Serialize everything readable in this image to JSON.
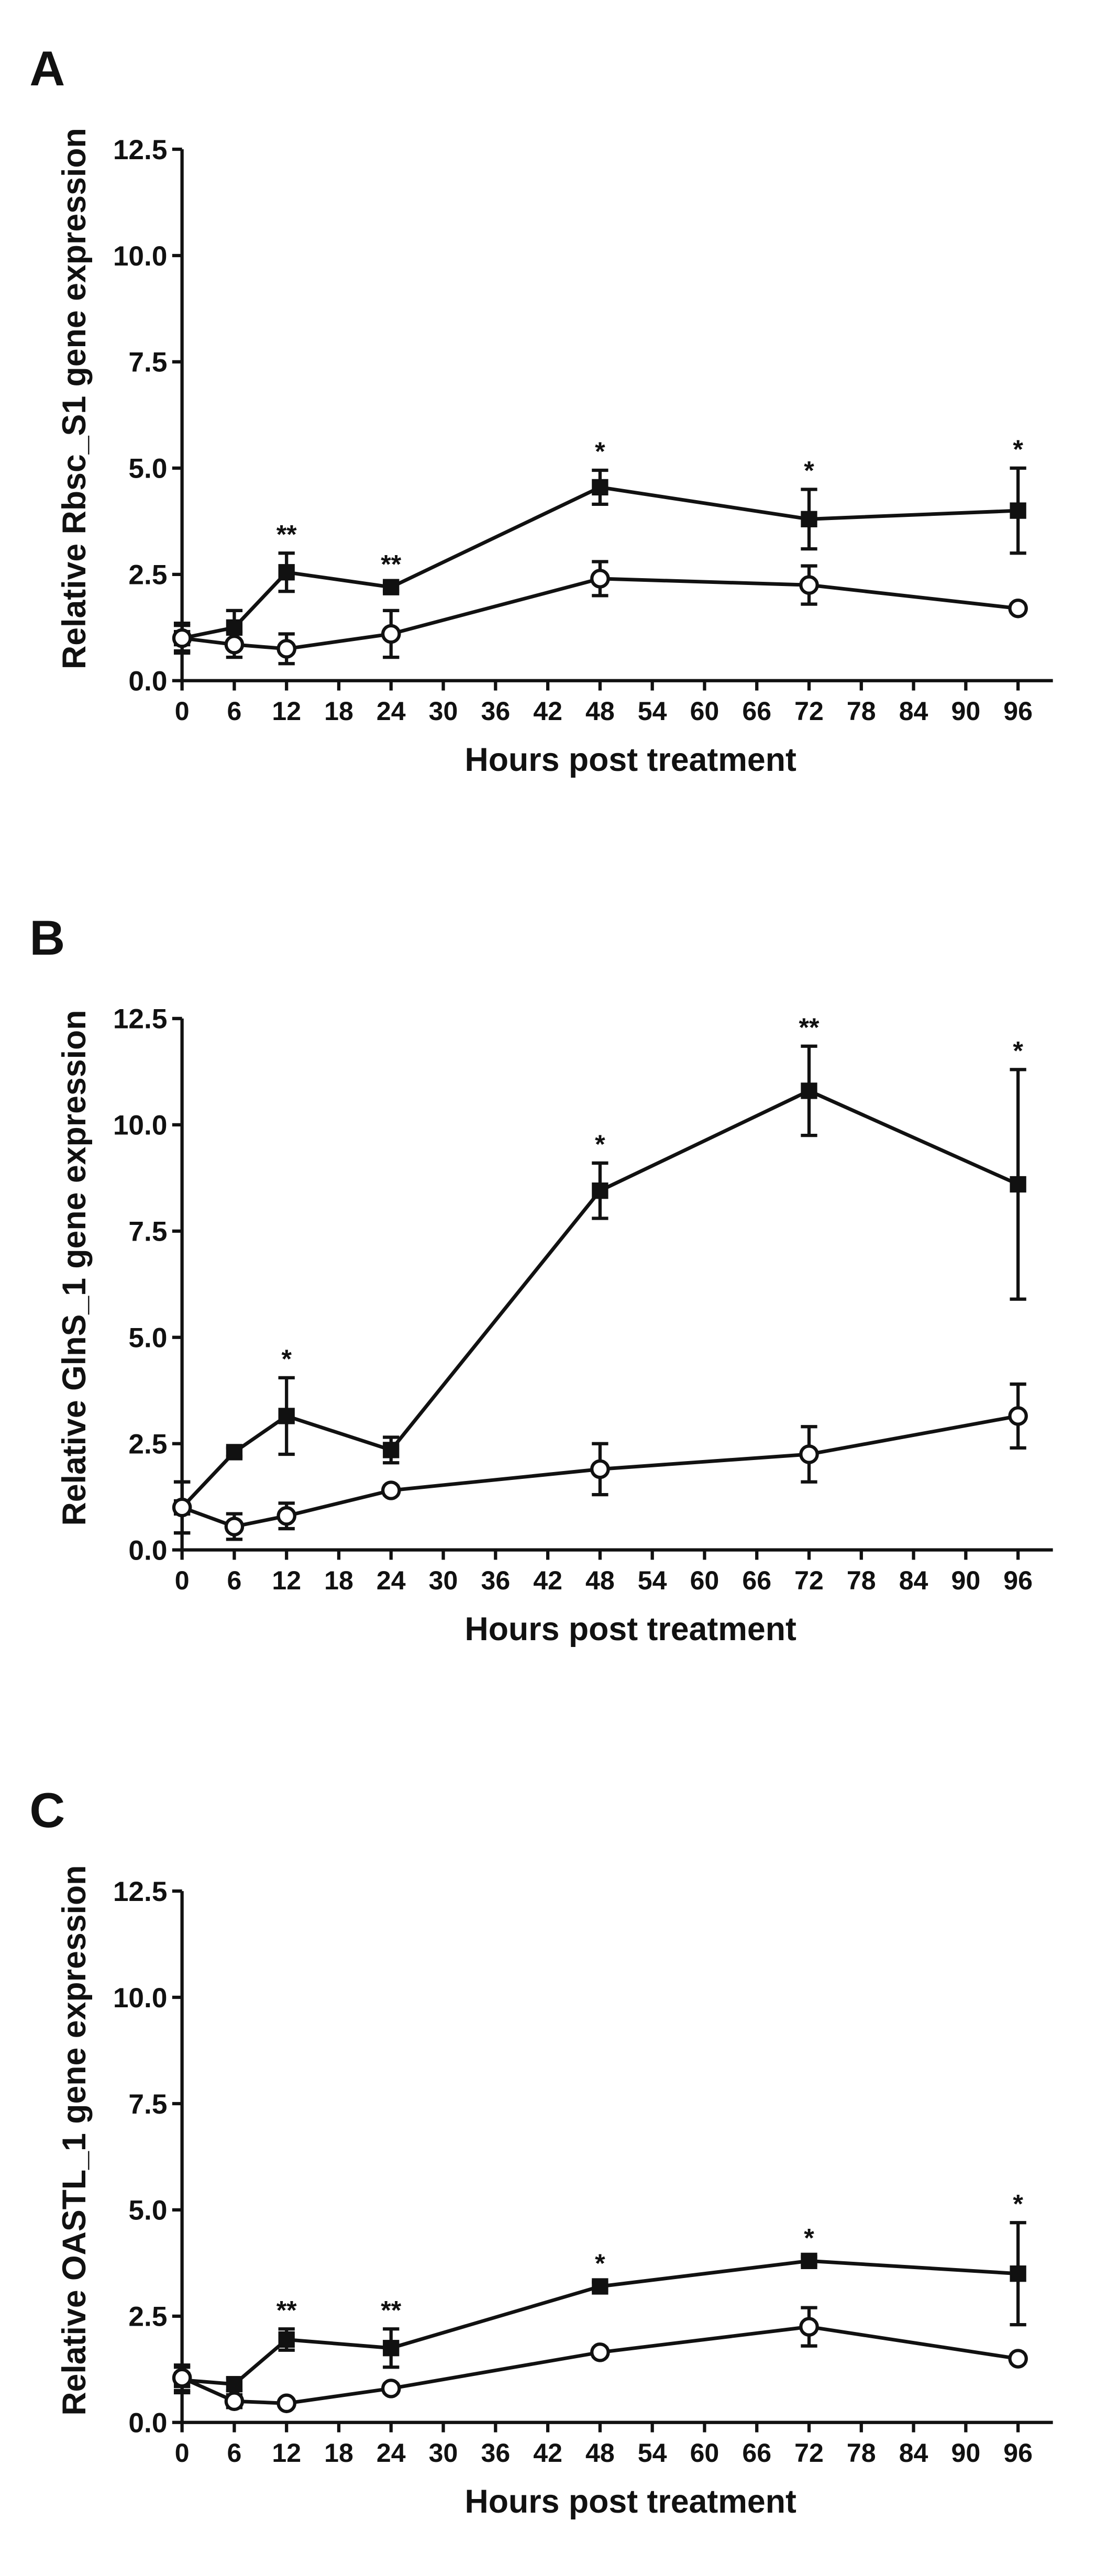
{
  "chart_data": [
    {
      "type": "line",
      "panel": "A",
      "ylabel": "Relative Rbsc_S1 gene expression",
      "xlabel": "Hours post treatment",
      "x": [
        0,
        6,
        12,
        24,
        48,
        72,
        96
      ],
      "xlim": [
        0,
        100
      ],
      "xticks": [
        0,
        6,
        12,
        18,
        24,
        30,
        36,
        42,
        48,
        54,
        60,
        66,
        72,
        78,
        84,
        90,
        96
      ],
      "ylim": [
        0,
        12.5
      ],
      "yticks": [
        {
          "value": 0,
          "label": "0.0"
        },
        2.5,
        {
          "value": 5,
          "label": "5.0"
        },
        7.5,
        {
          "value": 10,
          "label": "10.0"
        },
        12.5
      ],
      "series": [
        {
          "marker": "square",
          "color": "#111111",
          "values": [
            1.0,
            1.25,
            2.55,
            2.2,
            4.55,
            3.8,
            4.0
          ],
          "errors": [
            0.35,
            0.4,
            0.45,
            0.1,
            0.4,
            0.7,
            1.0
          ]
        },
        {
          "marker": "circle",
          "color": "#111111",
          "values": [
            1.0,
            0.85,
            0.75,
            1.1,
            2.4,
            2.25,
            1.7
          ],
          "errors": [
            0.3,
            0.3,
            0.35,
            0.55,
            0.4,
            0.45,
            0.1
          ]
        }
      ],
      "annotations": [
        {
          "x": 12,
          "text": "**"
        },
        {
          "x": 24,
          "text": "**"
        },
        {
          "x": 48,
          "text": "*"
        },
        {
          "x": 72,
          "text": "*"
        },
        {
          "x": 96,
          "text": "*"
        }
      ]
    },
    {
      "type": "line",
      "panel": "B",
      "ylabel": "Relative GlnS_1 gene expression",
      "xlabel": "Hours post treatment",
      "x": [
        0,
        6,
        12,
        24,
        48,
        72,
        96
      ],
      "xlim": [
        0,
        100
      ],
      "xticks": [
        0,
        6,
        12,
        18,
        24,
        30,
        36,
        42,
        48,
        54,
        60,
        66,
        72,
        78,
        84,
        90,
        96
      ],
      "ylim": [
        0,
        12.5
      ],
      "yticks": [
        {
          "value": 0,
          "label": "0.0"
        },
        2.5,
        {
          "value": 5,
          "label": "5.0"
        },
        7.5,
        {
          "value": 10,
          "label": "10.0"
        },
        12.5
      ],
      "series": [
        {
          "marker": "square",
          "color": "#111111",
          "values": [
            1.0,
            2.3,
            3.15,
            2.35,
            8.45,
            10.8,
            8.6
          ],
          "errors": [
            0.6,
            0.1,
            0.9,
            0.3,
            0.65,
            1.05,
            2.7
          ]
        },
        {
          "marker": "circle",
          "color": "#111111",
          "values": [
            1.0,
            0.55,
            0.8,
            1.4,
            1.9,
            2.25,
            3.15
          ],
          "errors": [
            0.6,
            0.3,
            0.3,
            0.1,
            0.6,
            0.65,
            0.75
          ]
        }
      ],
      "annotations": [
        {
          "x": 12,
          "text": "*"
        },
        {
          "x": 48,
          "text": "*"
        },
        {
          "x": 72,
          "text": "**"
        },
        {
          "x": 96,
          "text": "*"
        }
      ]
    },
    {
      "type": "line",
      "panel": "C",
      "ylabel": "Relative OASTL_1 gene expression",
      "xlabel": "Hours post treatment",
      "x": [
        0,
        6,
        12,
        24,
        48,
        72,
        96
      ],
      "xlim": [
        0,
        100
      ],
      "xticks": [
        0,
        6,
        12,
        18,
        24,
        30,
        36,
        42,
        48,
        54,
        60,
        66,
        72,
        78,
        84,
        90,
        96
      ],
      "ylim": [
        0,
        12.5
      ],
      "yticks": [
        {
          "value": 0,
          "label": "0.0"
        },
        2.5,
        {
          "value": 5,
          "label": "5.0"
        },
        7.5,
        {
          "value": 10,
          "label": "10.0"
        },
        12.5
      ],
      "series": [
        {
          "marker": "square",
          "color": "#111111",
          "values": [
            1.0,
            0.9,
            1.95,
            1.75,
            3.2,
            3.8,
            3.5
          ],
          "errors": [
            0.3,
            0.15,
            0.25,
            0.45,
            0.1,
            0.1,
            1.2
          ]
        },
        {
          "marker": "circle",
          "color": "#111111",
          "values": [
            1.05,
            0.5,
            0.45,
            0.8,
            1.65,
            2.25,
            1.5
          ],
          "errors": [
            0.3,
            0.15,
            0.05,
            0.1,
            0.1,
            0.45,
            0.1
          ]
        }
      ],
      "annotations": [
        {
          "x": 12,
          "text": "**"
        },
        {
          "x": 24,
          "text": "**"
        },
        {
          "x": 48,
          "text": "*"
        },
        {
          "x": 72,
          "text": "*"
        },
        {
          "x": 96,
          "text": "*"
        }
      ]
    }
  ]
}
